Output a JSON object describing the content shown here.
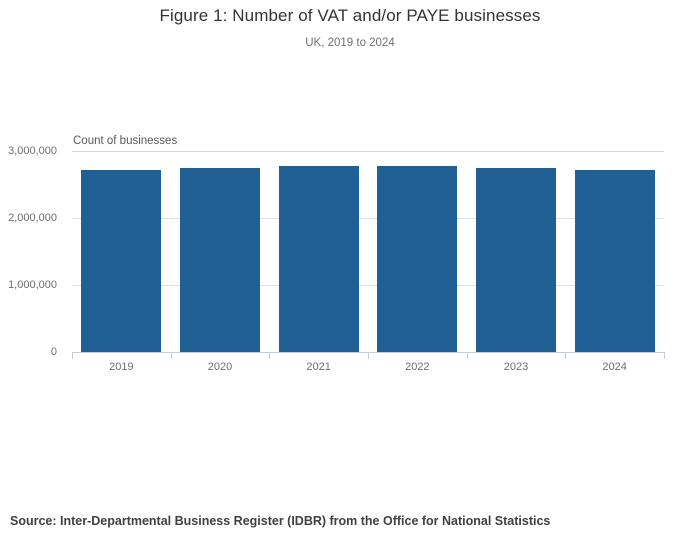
{
  "header": {
    "title": "Figure 1: Number of VAT and/or PAYE businesses",
    "subtitle": "UK, 2019 to 2024"
  },
  "chart_data": {
    "type": "bar",
    "title": "Figure 1: Number of VAT and/or PAYE businesses",
    "subtitle": "UK, 2019 to 2024",
    "axis_title": "Count of businesses",
    "xlabel": "",
    "ylabel": "Count of businesses",
    "categories": [
      "2019",
      "2020",
      "2021",
      "2022",
      "2023",
      "2024"
    ],
    "values": [
      2720000,
      2750000,
      2770000,
      2770000,
      2740000,
      2710000
    ],
    "ylim": [
      0,
      3000000
    ],
    "yticks": [
      0,
      1000000,
      2000000,
      3000000
    ],
    "ytick_labels": [
      "0",
      "1,000,000",
      "2,000,000",
      "3,000,000"
    ],
    "grid": true,
    "legend": "none",
    "bar_color": "#206095"
  },
  "footer": {
    "source": "Source: Inter-Departmental Business Register (IDBR) from the Office for National Statistics"
  },
  "colors": {
    "bar": "#206095",
    "gridline": "#e2e2e2",
    "axis": "#c6cdd4",
    "tick_text": "#6e6e6e",
    "title_text": "#333333",
    "subtitle_text": "#707071",
    "source_text": "#414042"
  }
}
